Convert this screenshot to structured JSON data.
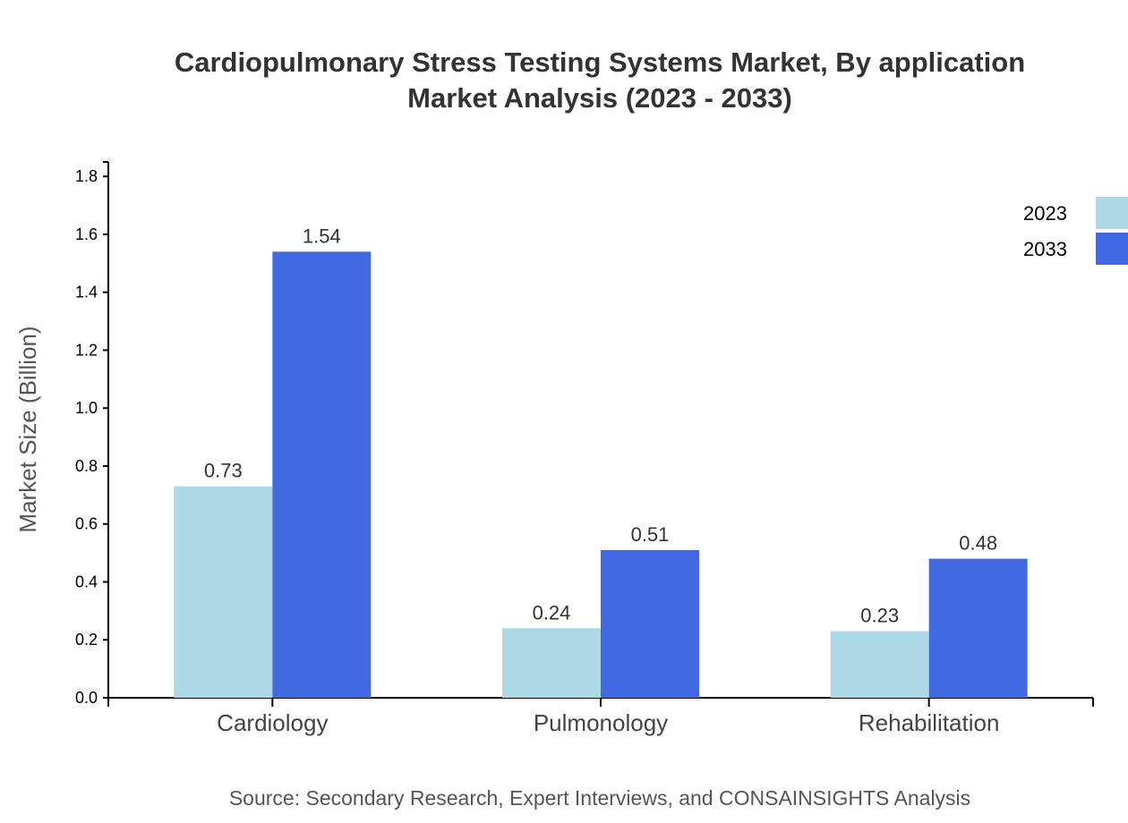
{
  "chart_data": {
    "type": "bar",
    "title": [
      "Cardiopulmonary Stress Testing Systems Market, By application",
      "Market Analysis (2023 - 2033)"
    ],
    "xlabel": "",
    "ylabel": "Market Size (Billion)",
    "categories": [
      "Cardiology",
      "Pulmonology",
      "Rehabilitation"
    ],
    "series": [
      {
        "name": "2023",
        "values": [
          0.73,
          0.24,
          0.23
        ],
        "color": "#ADD8E6"
      },
      {
        "name": "2033",
        "values": [
          1.54,
          0.51,
          0.48
        ],
        "color": "#4169E1"
      }
    ],
    "ylim": [
      0,
      1.85
    ],
    "yticks": [
      "0.0",
      "0.2",
      "0.4",
      "0.6",
      "0.8",
      "1.0",
      "1.2",
      "1.4",
      "1.6",
      "1.8"
    ],
    "grid": false,
    "legend": "top-right",
    "source": "Source: Secondary Research, Expert Interviews, and CONSAINSIGHTS Analysis"
  }
}
